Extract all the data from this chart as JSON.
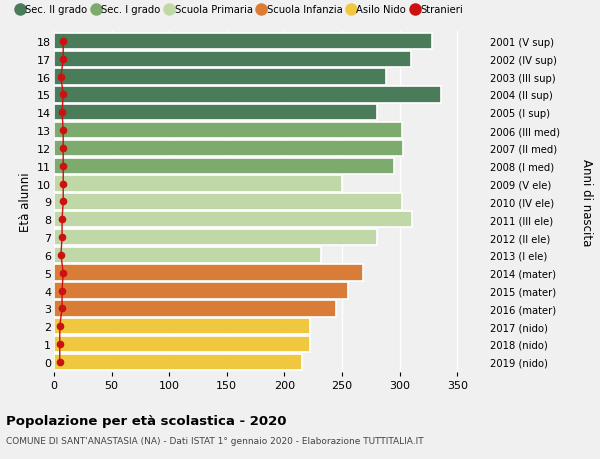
{
  "ages": [
    18,
    17,
    16,
    15,
    14,
    13,
    12,
    11,
    10,
    9,
    8,
    7,
    6,
    5,
    4,
    3,
    2,
    1,
    0
  ],
  "years": [
    "2001 (V sup)",
    "2002 (IV sup)",
    "2003 (III sup)",
    "2004 (II sup)",
    "2005 (I sup)",
    "2006 (III med)",
    "2007 (II med)",
    "2008 (I med)",
    "2009 (V ele)",
    "2010 (IV ele)",
    "2011 (III ele)",
    "2012 (II ele)",
    "2013 (I ele)",
    "2014 (mater)",
    "2015 (mater)",
    "2016 (mater)",
    "2017 (nido)",
    "2018 (nido)",
    "2019 (nido)"
  ],
  "values": [
    328,
    310,
    288,
    336,
    280,
    302,
    303,
    295,
    250,
    302,
    311,
    280,
    232,
    268,
    255,
    245,
    222,
    222,
    215
  ],
  "stranieri": [
    8,
    8,
    6,
    8,
    7,
    8,
    8,
    8,
    8,
    8,
    7,
    7,
    6,
    8,
    7,
    7,
    5,
    5,
    5
  ],
  "bar_colors": [
    "#4a7c59",
    "#4a7c59",
    "#4a7c59",
    "#4a7c59",
    "#4a7c59",
    "#7dab6e",
    "#7dab6e",
    "#7dab6e",
    "#c0d8a8",
    "#c0d8a8",
    "#c0d8a8",
    "#c0d8a8",
    "#c0d8a8",
    "#d97c38",
    "#d97c38",
    "#d97c38",
    "#f0c840",
    "#f0c840",
    "#f0c840"
  ],
  "legend_colors": [
    "#4a7c59",
    "#7dab6e",
    "#c0d8a8",
    "#d97c38",
    "#f0c840",
    "#cc1111"
  ],
  "legend_labels": [
    "Sec. II grado",
    "Sec. I grado",
    "Scuola Primaria",
    "Scuola Infanzia",
    "Asilo Nido",
    "Stranieri"
  ],
  "ylabel": "Età alunni",
  "ylabel_right": "Anni di nascita",
  "title": "Popolazione per età scolastica - 2020",
  "subtitle": "COMUNE DI SANT'ANASTASIA (NA) - Dati ISTAT 1° gennaio 2020 - Elaborazione TUTTITALIA.IT",
  "xlim": [
    0,
    375
  ],
  "xticks": [
    0,
    50,
    100,
    150,
    200,
    250,
    300,
    350
  ],
  "background_color": "#f0f0f0",
  "stranieri_color": "#cc1111"
}
